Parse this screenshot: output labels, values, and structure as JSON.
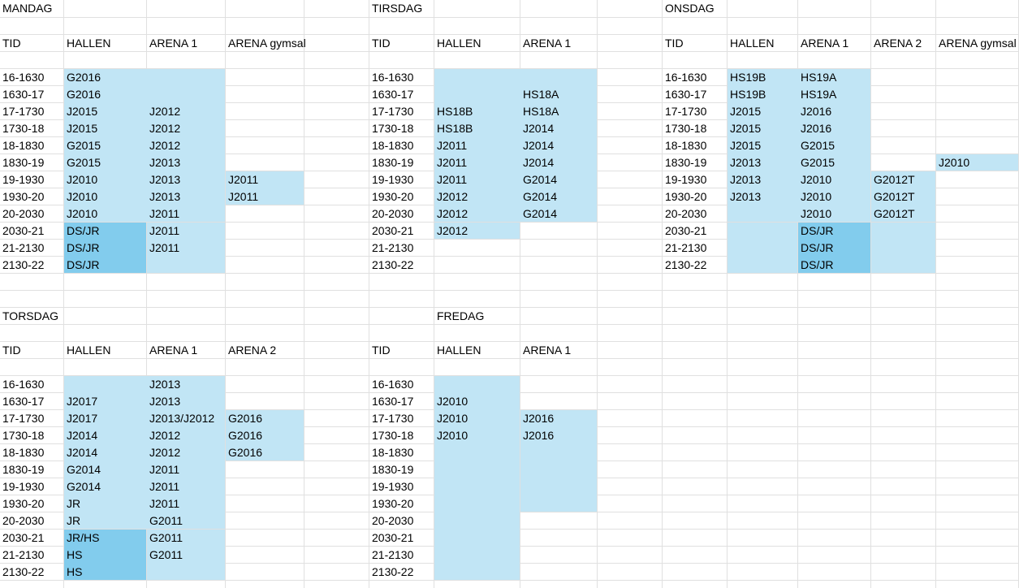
{
  "colors": {
    "light_blue": "#c1e5f5",
    "dark_blue": "#82cced",
    "grid": "#e0e0e0"
  },
  "sections": [
    {
      "day": "MANDAG",
      "columns": [
        "TID",
        "HALLEN",
        "ARENA 1",
        "ARENA gymsal"
      ],
      "rows": [
        [
          "16-1630",
          "G2016",
          "",
          ""
        ],
        [
          "1630-17",
          "G2016",
          "",
          ""
        ],
        [
          "17-1730",
          "J2015",
          "J2012",
          ""
        ],
        [
          "1730-18",
          "J2015",
          "J2012",
          ""
        ],
        [
          "18-1830",
          "G2015",
          "J2012",
          ""
        ],
        [
          "1830-19",
          "G2015",
          "J2013",
          ""
        ],
        [
          "19-1930",
          "J2010",
          "J2013",
          "J2011"
        ],
        [
          "1930-20",
          "J2010",
          "J2013",
          "J2011"
        ],
        [
          "20-2030",
          "J2010",
          "J2011",
          ""
        ],
        [
          "2030-21",
          "DS/JR",
          "J2011",
          ""
        ],
        [
          "21-2130",
          "DS/JR",
          "J2011",
          ""
        ],
        [
          "2130-22",
          "DS/JR",
          "",
          ""
        ]
      ]
    },
    {
      "day": "TIRSDAG",
      "columns": [
        "TID",
        "HALLEN",
        "ARENA 1"
      ],
      "rows": [
        [
          "16-1630",
          "",
          ""
        ],
        [
          "1630-17",
          "",
          "HS18A"
        ],
        [
          "17-1730",
          "HS18B",
          "HS18A"
        ],
        [
          "1730-18",
          "HS18B",
          "J2014"
        ],
        [
          "18-1830",
          "J2011",
          "J2014"
        ],
        [
          "1830-19",
          "J2011",
          "J2014"
        ],
        [
          "19-1930",
          "J2011",
          "G2014"
        ],
        [
          "1930-20",
          "J2012",
          "G2014"
        ],
        [
          "20-2030",
          "J2012",
          "G2014"
        ],
        [
          "2030-21",
          "J2012",
          ""
        ],
        [
          "21-2130",
          "",
          ""
        ],
        [
          "2130-22",
          "",
          ""
        ]
      ]
    },
    {
      "day": "ONSDAG",
      "columns": [
        "TID",
        "HALLEN",
        "ARENA 1",
        "ARENA 2",
        "ARENA gymsal"
      ],
      "rows": [
        [
          "16-1630",
          "HS19B",
          "HS19A",
          "",
          ""
        ],
        [
          "1630-17",
          "HS19B",
          "HS19A",
          "",
          ""
        ],
        [
          "17-1730",
          "J2015",
          "J2016",
          "",
          ""
        ],
        [
          "1730-18",
          "J2015",
          "J2016",
          "",
          ""
        ],
        [
          "18-1830",
          "J2015",
          "G2015",
          "",
          ""
        ],
        [
          "1830-19",
          "J2013",
          "G2015",
          "",
          "J2010"
        ],
        [
          "19-1930",
          "J2013",
          "J2010",
          "G2012T",
          ""
        ],
        [
          "1930-20",
          "J2013",
          "J2010",
          "G2012T",
          ""
        ],
        [
          "20-2030",
          "",
          "J2010",
          "G2012T",
          ""
        ],
        [
          "2030-21",
          "",
          "DS/JR",
          "",
          ""
        ],
        [
          "21-2130",
          "",
          "DS/JR",
          "",
          ""
        ],
        [
          "2130-22",
          "",
          "DS/JR",
          "",
          ""
        ]
      ]
    },
    {
      "day": "TORSDAG",
      "columns": [
        "TID",
        "HALLEN",
        "ARENA 1",
        "ARENA 2"
      ],
      "rows": [
        [
          "16-1630",
          "",
          "J2013",
          ""
        ],
        [
          "1630-17",
          "J2017",
          "J2013",
          ""
        ],
        [
          "17-1730",
          "J2017",
          "J2013/J2012",
          "G2016"
        ],
        [
          "1730-18",
          "J2014",
          "J2012",
          "G2016"
        ],
        [
          "18-1830",
          "J2014",
          "J2012",
          "G2016"
        ],
        [
          "1830-19",
          "G2014",
          "J2011",
          ""
        ],
        [
          "19-1930",
          "G2014",
          "J2011",
          ""
        ],
        [
          "1930-20",
          "JR",
          "J2011",
          ""
        ],
        [
          "20-2030",
          "JR",
          "G2011",
          ""
        ],
        [
          "2030-21",
          "JR/HS",
          "G2011",
          ""
        ],
        [
          "21-2130",
          "HS",
          "G2011",
          ""
        ],
        [
          "2130-22",
          "HS",
          "",
          ""
        ]
      ]
    },
    {
      "day": "FREDAG",
      "columns": [
        "TID",
        "HALLEN",
        "ARENA 1"
      ],
      "rows": [
        [
          "16-1630",
          "",
          ""
        ],
        [
          "1630-17",
          "J2010",
          ""
        ],
        [
          "17-1730",
          "J2010",
          "J2016"
        ],
        [
          "1730-18",
          "J2010",
          "J2016"
        ],
        [
          "18-1830",
          "",
          ""
        ],
        [
          "1830-19",
          "",
          ""
        ],
        [
          "19-1930",
          "",
          ""
        ],
        [
          "1930-20",
          "",
          ""
        ],
        [
          "20-2030",
          "",
          ""
        ],
        [
          "2030-21",
          "",
          ""
        ],
        [
          "21-2130",
          "",
          ""
        ],
        [
          "2130-22",
          "",
          ""
        ]
      ]
    }
  ]
}
